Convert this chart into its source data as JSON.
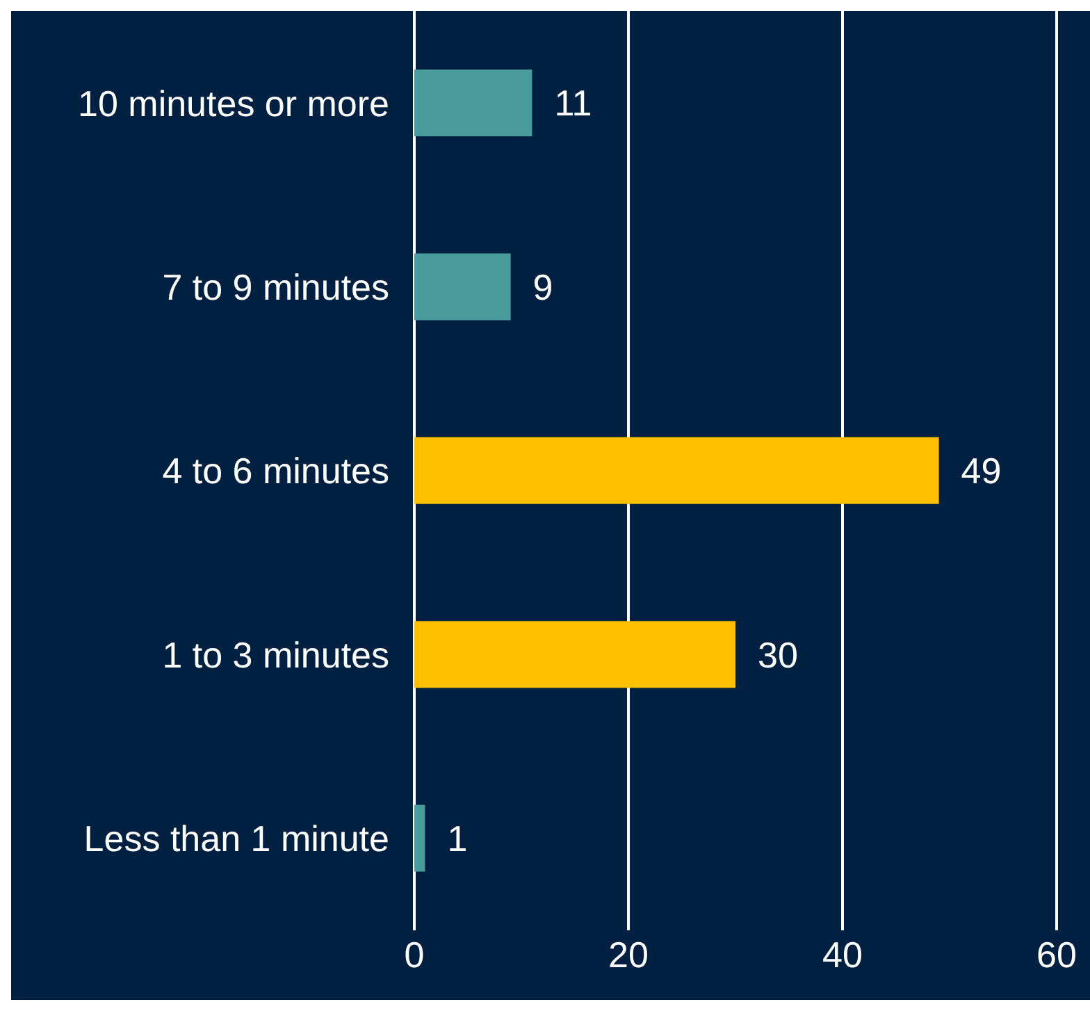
{
  "chart_data": {
    "type": "bar",
    "orientation": "horizontal",
    "categories": [
      "10 minutes or more",
      "7 to 9 minutes",
      "4 to 6 minutes",
      "1 to 3 minutes",
      "Less than 1 minute"
    ],
    "values": [
      11,
      9,
      49,
      30,
      1
    ],
    "colors": [
      "#4a9c9c",
      "#4a9c9c",
      "#ffc000",
      "#ffc000",
      "#4a9c9c"
    ],
    "xlim": [
      0,
      60
    ],
    "xticks": [
      0,
      20,
      40,
      60
    ],
    "grid": "x",
    "data_labels": true
  }
}
